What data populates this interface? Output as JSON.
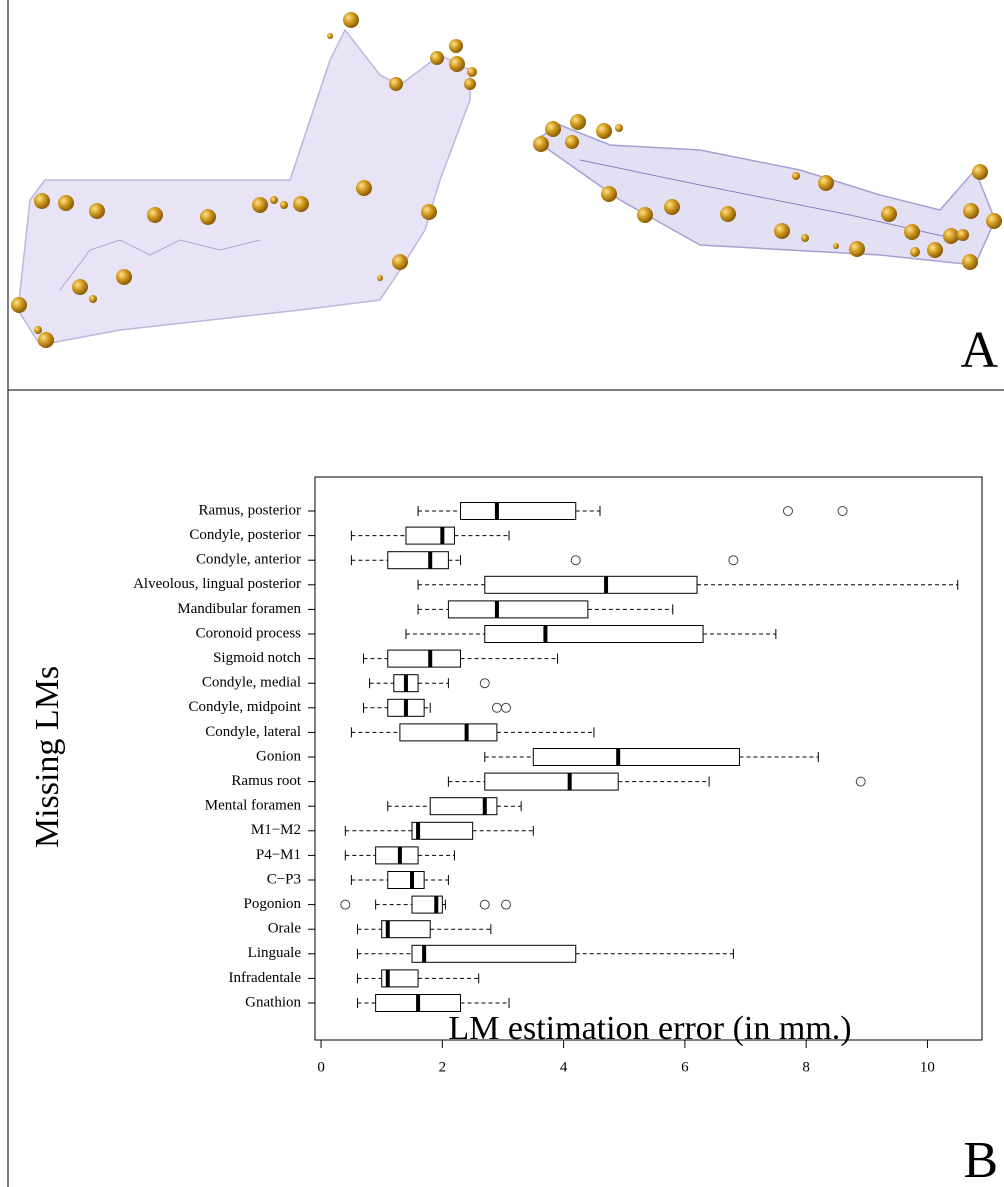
{
  "panel_labels": [
    "A",
    "B"
  ],
  "chart_data": {
    "type": "box",
    "orientation": "horizontal",
    "xlabel": "LM estimation error (in mm.)",
    "ylabel": "Missing LMs",
    "categories": [
      "Ramus, posterior",
      "Condyle, posterior",
      "Condyle, anterior",
      "Alveolous, lingual posterior",
      "Mandibular foramen",
      "Coronoid process",
      "Sigmoid notch",
      "Condyle, medial",
      "Condyle, midpoint",
      "Condyle, lateral",
      "Gonion",
      "Ramus root",
      "Mental foramen",
      "M1−M2",
      "P4−M1",
      "C−P3",
      "Pogonion",
      "Orale",
      "Linguale",
      "Infradentale",
      "Gnathion"
    ],
    "boxes": [
      {
        "whislo": 1.6,
        "q1": 2.3,
        "med": 2.9,
        "q3": 4.2,
        "whishi": 4.6,
        "fliers": [
          7.7,
          8.6
        ]
      },
      {
        "whislo": 0.5,
        "q1": 1.4,
        "med": 2.0,
        "q3": 2.2,
        "whishi": 3.1,
        "fliers": []
      },
      {
        "whislo": 0.5,
        "q1": 1.1,
        "med": 1.8,
        "q3": 2.1,
        "whishi": 2.3,
        "fliers": [
          4.2,
          6.8
        ]
      },
      {
        "whislo": 1.6,
        "q1": 2.7,
        "med": 4.7,
        "q3": 6.2,
        "whishi": 10.5,
        "fliers": []
      },
      {
        "whislo": 1.6,
        "q1": 2.1,
        "med": 2.9,
        "q3": 4.4,
        "whishi": 5.8,
        "fliers": []
      },
      {
        "whislo": 1.4,
        "q1": 2.7,
        "med": 3.7,
        "q3": 6.3,
        "whishi": 7.5,
        "fliers": []
      },
      {
        "whislo": 0.7,
        "q1": 1.1,
        "med": 1.8,
        "q3": 2.3,
        "whishi": 3.9,
        "fliers": []
      },
      {
        "whislo": 0.8,
        "q1": 1.2,
        "med": 1.4,
        "q3": 1.6,
        "whishi": 2.1,
        "fliers": [
          2.7
        ]
      },
      {
        "whislo": 0.7,
        "q1": 1.1,
        "med": 1.4,
        "q3": 1.7,
        "whishi": 1.8,
        "fliers": [
          2.9,
          3.05
        ]
      },
      {
        "whislo": 0.5,
        "q1": 1.3,
        "med": 2.4,
        "q3": 2.9,
        "whishi": 4.5,
        "fliers": []
      },
      {
        "whislo": 2.7,
        "q1": 3.5,
        "med": 4.9,
        "q3": 6.9,
        "whishi": 8.2,
        "fliers": []
      },
      {
        "whislo": 2.1,
        "q1": 2.7,
        "med": 4.1,
        "q3": 4.9,
        "whishi": 6.4,
        "fliers": [
          8.9
        ]
      },
      {
        "whislo": 1.1,
        "q1": 1.8,
        "med": 2.7,
        "q3": 2.9,
        "whishi": 3.3,
        "fliers": []
      },
      {
        "whislo": 0.4,
        "q1": 1.5,
        "med": 1.6,
        "q3": 2.5,
        "whishi": 3.5,
        "fliers": []
      },
      {
        "whislo": 0.4,
        "q1": 0.9,
        "med": 1.3,
        "q3": 1.6,
        "whishi": 2.2,
        "fliers": []
      },
      {
        "whislo": 0.5,
        "q1": 1.1,
        "med": 1.5,
        "q3": 1.7,
        "whishi": 2.1,
        "fliers": []
      },
      {
        "whislo": 0.9,
        "q1": 1.5,
        "med": 1.9,
        "q3": 2.0,
        "whishi": 2.05,
        "fliers": [
          0.4,
          2.7,
          3.05
        ]
      },
      {
        "whislo": 0.6,
        "q1": 1.0,
        "med": 1.1,
        "q3": 1.8,
        "whishi": 2.8,
        "fliers": []
      },
      {
        "whislo": 0.6,
        "q1": 1.5,
        "med": 1.7,
        "q3": 4.2,
        "whishi": 6.8,
        "fliers": []
      },
      {
        "whislo": 0.6,
        "q1": 1.0,
        "med": 1.1,
        "q3": 1.6,
        "whishi": 2.6,
        "fliers": []
      },
      {
        "whislo": 0.6,
        "q1": 0.9,
        "med": 1.6,
        "q3": 2.3,
        "whishi": 3.1,
        "fliers": []
      }
    ],
    "xlim": [
      -0.1,
      10.9
    ],
    "xticks": [
      0,
      2,
      4,
      6,
      8,
      10
    ]
  }
}
